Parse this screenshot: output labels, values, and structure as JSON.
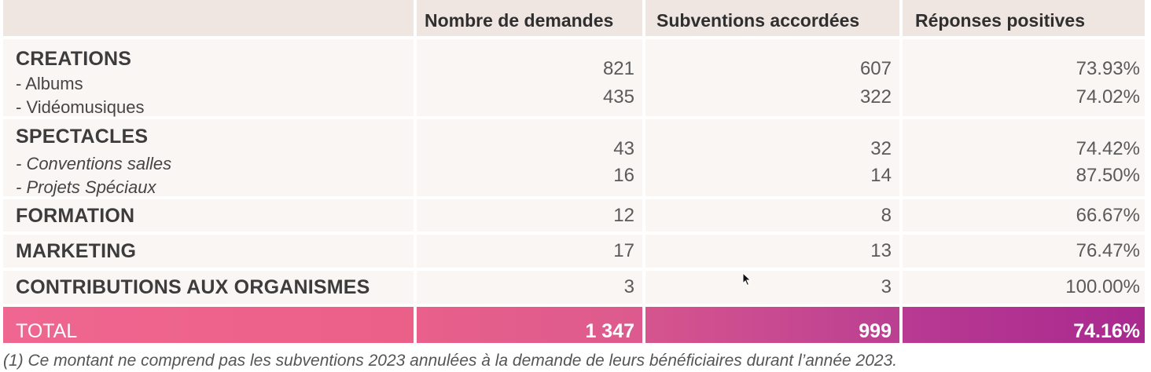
{
  "headers": {
    "col1": "",
    "col2": "Nombre de demandes",
    "col3": "Subventions accordées",
    "col4": "Réponses positives"
  },
  "rows": [
    {
      "category": "CREATIONS",
      "subitems": [
        {
          "label": "- Albums",
          "demandes": "821",
          "accordees": "607",
          "positives": "73.93%"
        },
        {
          "label": "- Vidéomusiques",
          "demandes": "435",
          "accordees": "322",
          "positives": "74.02%"
        }
      ]
    },
    {
      "category": "SPECTACLES",
      "subitems": [
        {
          "label": "- Conventions salles",
          "demandes": "43",
          "accordees": "32",
          "positives": "74.42%"
        },
        {
          "label": "- Projets Spéciaux",
          "demandes": "16",
          "accordees": "14",
          "positives": "87.50%"
        }
      ]
    },
    {
      "category": "FORMATION",
      "demandes": "12",
      "accordees": "8",
      "positives": "66.67%"
    },
    {
      "category": "MARKETING",
      "demandes": "17",
      "accordees": "13",
      "positives": "76.47%"
    },
    {
      "category": "CONTRIBUTIONS AUX ORGANISMES",
      "demandes": "3",
      "accordees": "3",
      "positives": "100.00%"
    }
  ],
  "total": {
    "label": "TOTAL",
    "demandes": "1 347",
    "accordees": "999",
    "positives": "74.16%"
  },
  "footnote": "(1)  Ce montant ne comprend pas les subventions 2023 annulées à la demande de leurs bénéficiaires durant l’année 2023.",
  "colors": {
    "header_bg": "#efe6e2",
    "cell_bg": "#faf6f4",
    "total_gradient_start": "#ef6690",
    "total_gradient_end": "#a9298f"
  }
}
